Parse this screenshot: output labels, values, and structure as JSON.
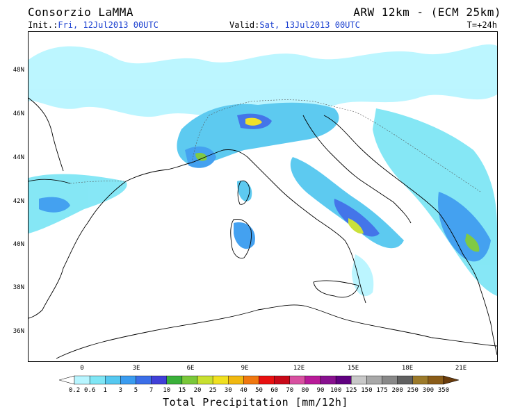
{
  "header": {
    "org": "Consorzio LaMMA",
    "model": "ARW 12km - (ECM 25km)",
    "init_label": "Init.:",
    "init_value": "Fri, 12Jul2013 00UTC",
    "valid_label": "Valid:",
    "valid_value": "Sat, 13Jul2013 00UTC",
    "lead": "T=+24h"
  },
  "axes": {
    "lat_labels": [
      "48N",
      "46N",
      "44N",
      "42N",
      "40N",
      "38N",
      "36N"
    ],
    "lon_labels": [
      "0",
      "3E",
      "6E",
      "9E",
      "12E",
      "15E",
      "18E",
      "21E"
    ]
  },
  "colorbar": {
    "title": "Total Precipitation [mm/12h]",
    "levels": [
      "0.2",
      "0.6",
      "1",
      "3",
      "5",
      "7",
      "10",
      "15",
      "20",
      "25",
      "30",
      "40",
      "50",
      "60",
      "70",
      "80",
      "90",
      "100",
      "125",
      "150",
      "175",
      "200",
      "250",
      "300",
      "350"
    ],
    "colors": [
      "#b8f5ff",
      "#7fe6f5",
      "#55c8f0",
      "#3a9cf0",
      "#3b6ee8",
      "#4040d8",
      "#3ab03a",
      "#7ac83a",
      "#c8e030",
      "#f0e020",
      "#f0b810",
      "#f07810",
      "#e81010",
      "#c80818",
      "#d850a0",
      "#b81a98",
      "#88108f",
      "#600080",
      "#c8c8c8",
      "#a8a8a8",
      "#888888",
      "#606060",
      "#9c7a2a",
      "#8a5c18",
      "#6a3c0c"
    ]
  }
}
